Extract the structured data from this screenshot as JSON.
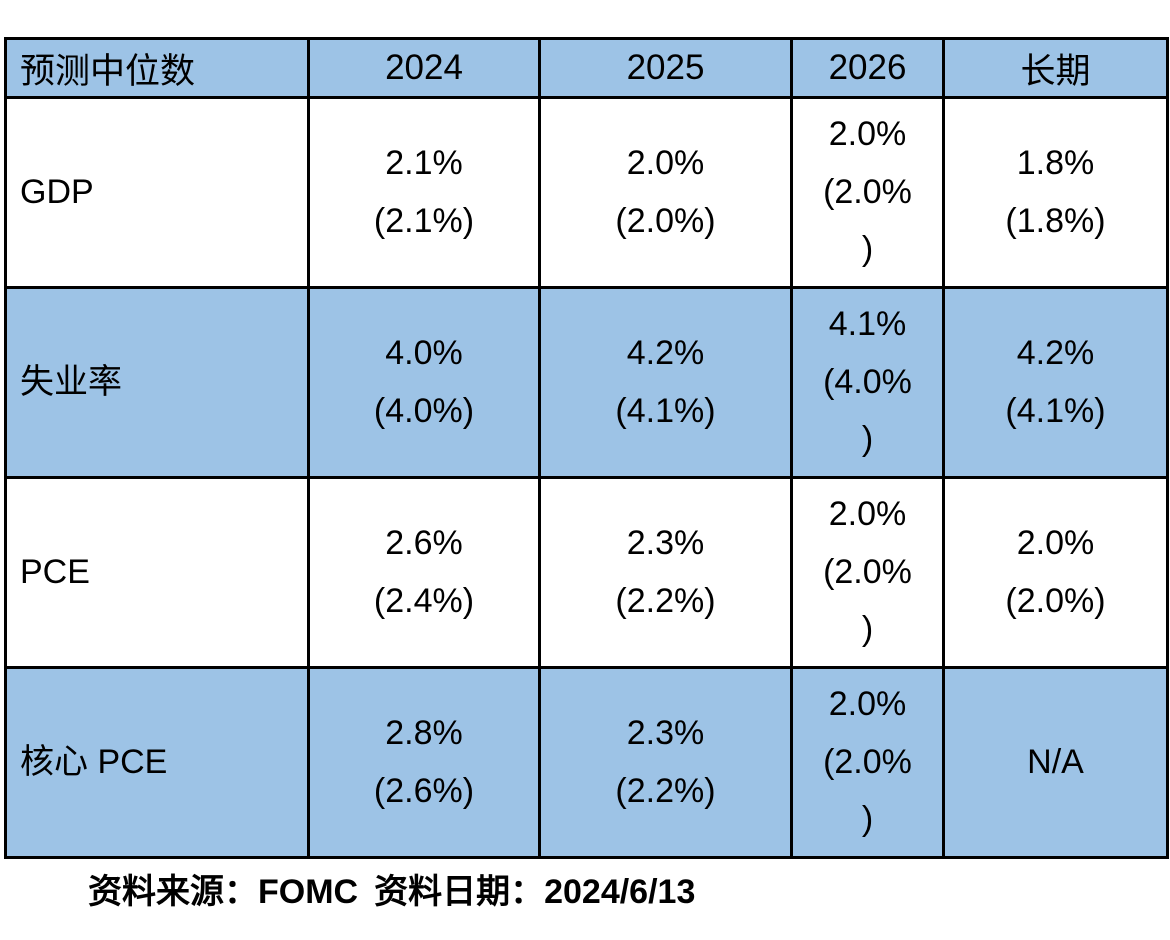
{
  "colors": {
    "header_bg": "#9DC3E6",
    "stripe_bg": "#9DC3E6",
    "plain_row_bg": "#FFFFFF",
    "border": "#000000",
    "text": "#000000"
  },
  "chart_data": {
    "type": "table",
    "title": "预测中位数",
    "columns": [
      "预测中位数",
      "2024",
      "2025",
      "2026",
      "长期"
    ],
    "rows": [
      {
        "label": "GDP",
        "cells": [
          {
            "value": "2.1%",
            "previous": "(2.1%)"
          },
          {
            "value": "2.0%",
            "previous": "(2.0%)"
          },
          {
            "value": "2.0%",
            "previous": "(2.0%)"
          },
          {
            "value": "1.8%",
            "previous": "(1.8%)"
          }
        ]
      },
      {
        "label": "失业率",
        "cells": [
          {
            "value": "4.0%",
            "previous": "(4.0%)"
          },
          {
            "value": "4.2%",
            "previous": "(4.1%)"
          },
          {
            "value": "4.1%",
            "previous": "(4.0%)"
          },
          {
            "value": "4.2%",
            "previous": "(4.1%)"
          }
        ]
      },
      {
        "label": "PCE",
        "cells": [
          {
            "value": "2.6%",
            "previous": "(2.4%)"
          },
          {
            "value": "2.3%",
            "previous": "(2.2%)"
          },
          {
            "value": "2.0%",
            "previous": "(2.0%)"
          },
          {
            "value": "2.0%",
            "previous": "(2.0%)"
          }
        ]
      },
      {
        "label": "核心 PCE",
        "cells": [
          {
            "value": "2.8%",
            "previous": "(2.6%)"
          },
          {
            "value": "2.3%",
            "previous": "(2.2%)"
          },
          {
            "value": "2.0%",
            "previous": "(2.0%)"
          },
          {
            "value": "N/A",
            "previous": null
          }
        ]
      }
    ],
    "layout": {
      "wrap_column": "2026",
      "striped_rows": [
        1,
        3
      ],
      "legend": "off",
      "grid": "full-borders"
    }
  },
  "footer": {
    "source": "资料来源：FOMC",
    "date": "资料日期：2024/6/13"
  }
}
